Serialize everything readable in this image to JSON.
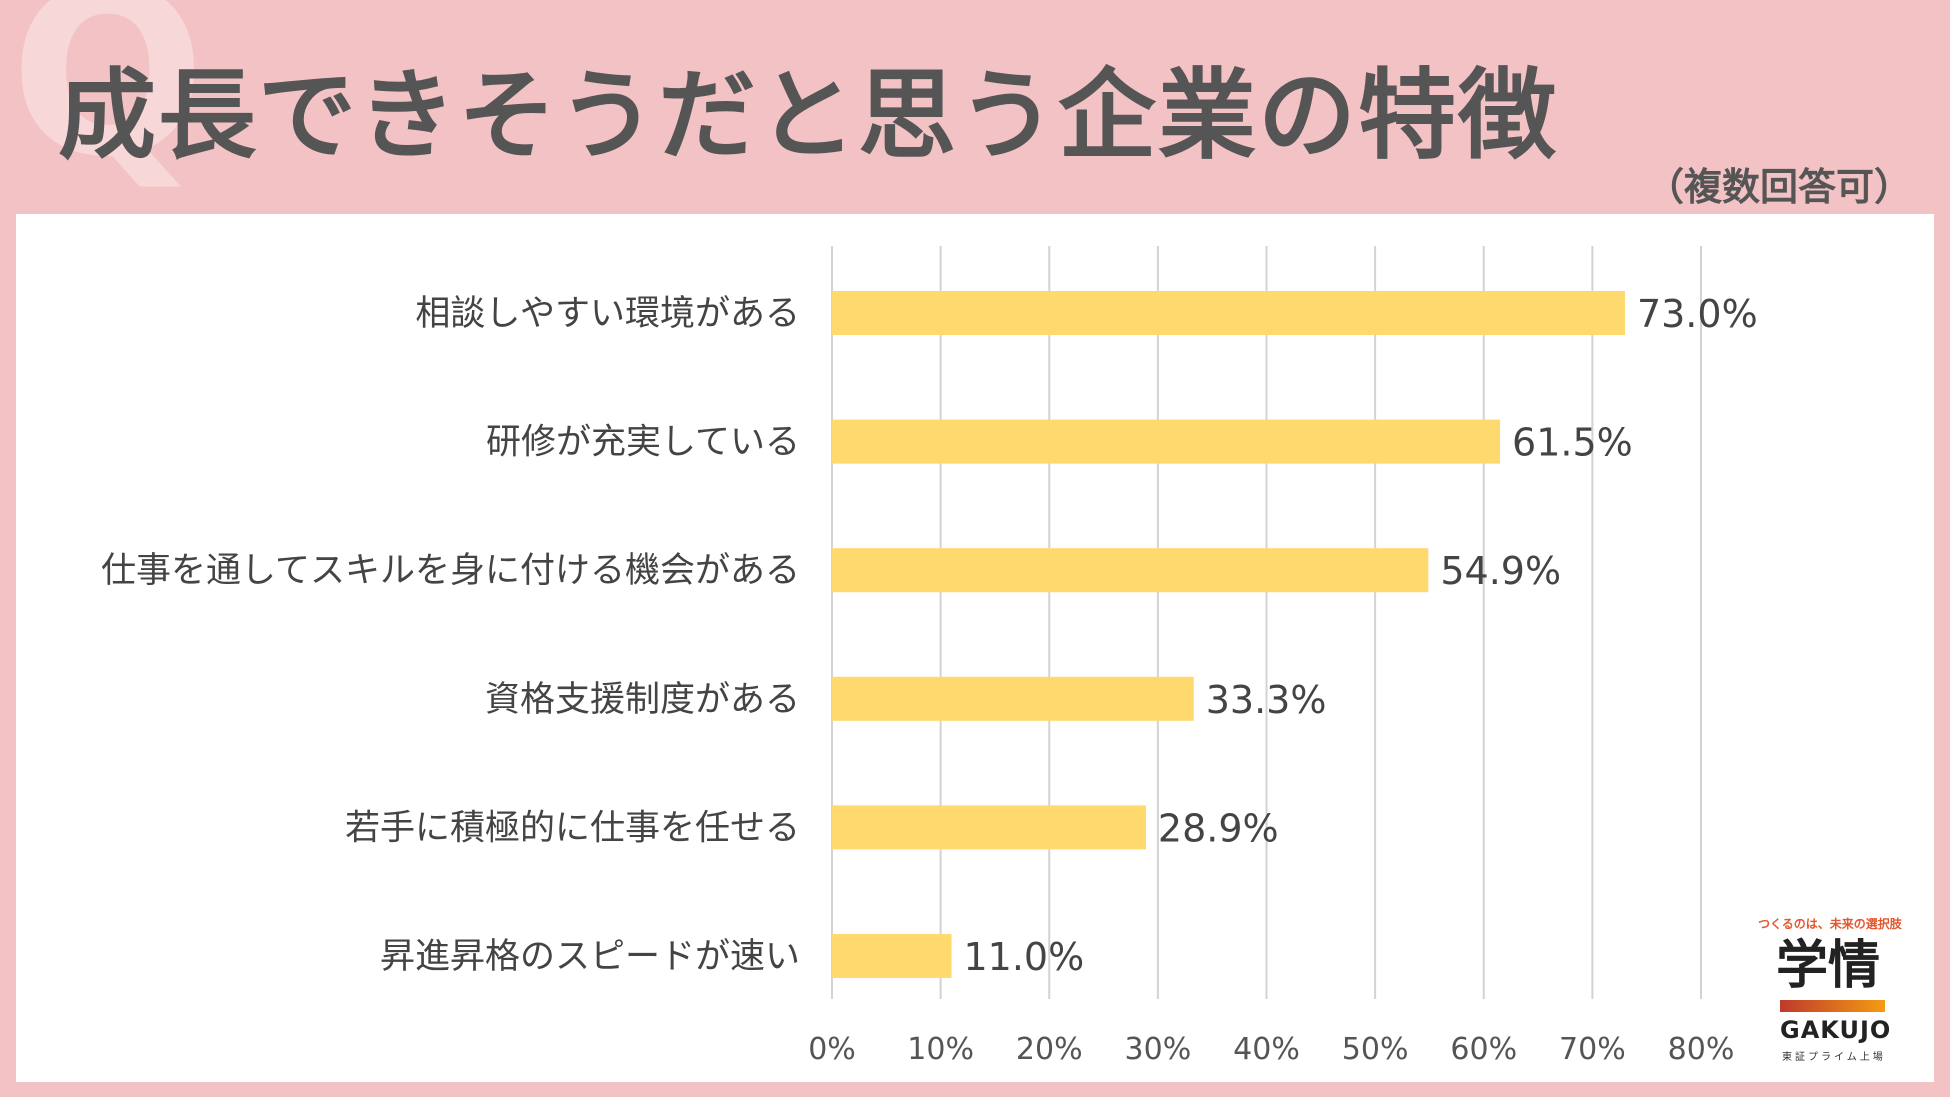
{
  "header": {
    "title": "成長できそうだと思う企業の特徴",
    "subtitle": "（複数回答可）",
    "watermark_glyph": "Q"
  },
  "logo": {
    "tagline": "つくるのは、未来の選択肢",
    "name_jp": "学情",
    "name_en": "GAKUJO",
    "sub": "東証プライム上場",
    "bar_colors": [
      "#c0392b",
      "#f39c12"
    ]
  },
  "colors": {
    "background": "#f2c2c4",
    "bar": "#fdd96e",
    "text": "#555555"
  },
  "chart_data": {
    "type": "bar",
    "orientation": "horizontal",
    "title": "成長できそうだと思う企業の特徴",
    "subtitle": "（複数回答可）",
    "categories": [
      "相談しやすい環境がある",
      "研修が充実している",
      "仕事を通してスキルを身に付ける機会がある",
      "資格支援制度がある",
      "若手に積極的に仕事を任せる",
      "昇進昇格のスピードが速い"
    ],
    "values": [
      73.0,
      61.5,
      54.9,
      33.3,
      28.9,
      11.0
    ],
    "value_labels": [
      "73.0%",
      "61.5%",
      "54.9%",
      "33.3%",
      "28.9%",
      "11.0%"
    ],
    "xlim": [
      0,
      80
    ],
    "ticks": [
      0,
      10,
      20,
      30,
      40,
      50,
      60,
      70,
      80
    ],
    "tick_labels": [
      "0%",
      "10%",
      "20%",
      "30%",
      "40%",
      "50%",
      "60%",
      "70%",
      "80%"
    ],
    "grid": true,
    "legend": "none"
  }
}
